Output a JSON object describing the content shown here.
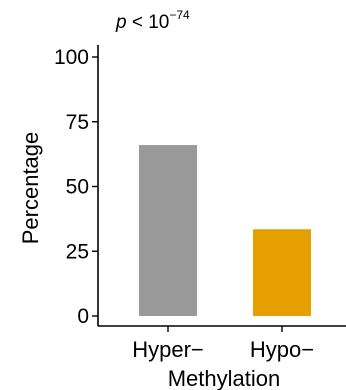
{
  "chart_data": {
    "type": "bar",
    "annotation": {
      "main": "p",
      "operator": " < 10",
      "exponent": "−74"
    },
    "ylabel": "Percentage",
    "xlabel": "Methylation",
    "categories": [
      "Hyper−",
      "Hypo−"
    ],
    "values": [
      66,
      33.5
    ],
    "ylim": [
      0,
      100
    ],
    "yticks": [
      0,
      25,
      50,
      75,
      100
    ],
    "grid": false,
    "legend": "none",
    "colors": [
      "#999999",
      "#E69F00"
    ]
  }
}
